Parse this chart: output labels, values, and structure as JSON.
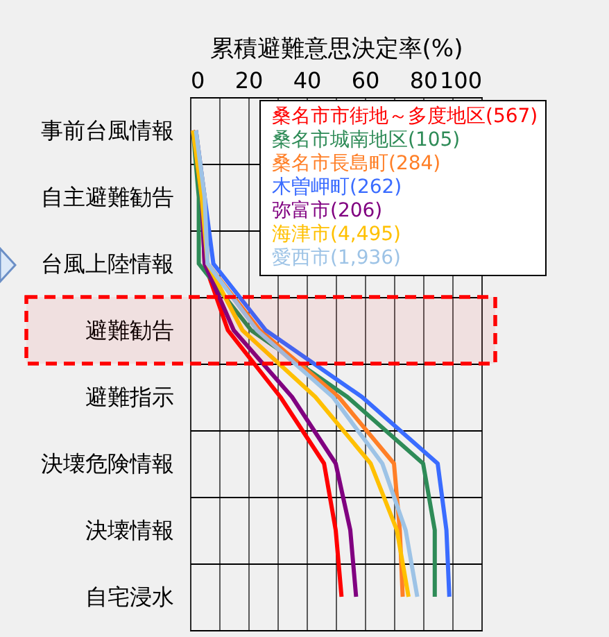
{
  "chart_data": {
    "type": "line",
    "xlabel": "累積避難意思決定率(%)",
    "categories": [
      "事前台風情報",
      "自主避難勧告",
      "台風上陸情報",
      "避難勧告",
      "避難指示",
      "決壊危険情報",
      "決壊情報",
      "自宅浸水"
    ],
    "orientation": "horizontal",
    "series": [
      {
        "name": "桑名市市街地～多度地区(567)",
        "color": "#ff0000",
        "values": [
          1,
          4,
          5,
          13,
          31,
          46,
          50,
          52
        ]
      },
      {
        "name": "桑名市城南地区(105)",
        "color": "#2e8b57",
        "values": [
          1,
          3,
          3,
          21,
          54,
          80,
          84,
          84
        ]
      },
      {
        "name": "桑名市長島町(284)",
        "color": "#ff7f27",
        "values": [
          2,
          5,
          6,
          24,
          51,
          70,
          72,
          73
        ]
      },
      {
        "name": "木曽岬町(262)",
        "color": "#3a6cff",
        "values": [
          2,
          5,
          8,
          26,
          59,
          85,
          88,
          89
        ]
      },
      {
        "name": "弥富市(206)",
        "color": "#800080",
        "values": [
          1,
          4,
          5,
          15,
          35,
          50,
          55,
          57
        ]
      },
      {
        "name": "海津市(4,495)",
        "color": "#ffc000",
        "values": [
          1,
          4,
          6,
          18,
          43,
          62,
          71,
          75
        ]
      },
      {
        "name": "愛西市(1,936)",
        "color": "#9dc3e6",
        "values": [
          2,
          5,
          6,
          23,
          49,
          66,
          74,
          78
        ]
      }
    ],
    "xlim": [
      0,
      100
    ],
    "xticks": [
      0,
      {
        "value": 10,
        "label": null
      },
      20,
      {
        "value": 30,
        "label": null
      },
      40,
      {
        "value": 50,
        "label": null
      },
      60,
      {
        "value": 70,
        "label": null
      },
      80,
      {
        "value": 90,
        "label": null
      },
      100
    ],
    "bands": [
      {
        "axis": "y",
        "from": "避難勧告",
        "to": "避難勧告",
        "color": "#ff0000"
      }
    ],
    "grid": true,
    "legend": "top right",
    "marker": "none",
    "line_style": "solid"
  }
}
